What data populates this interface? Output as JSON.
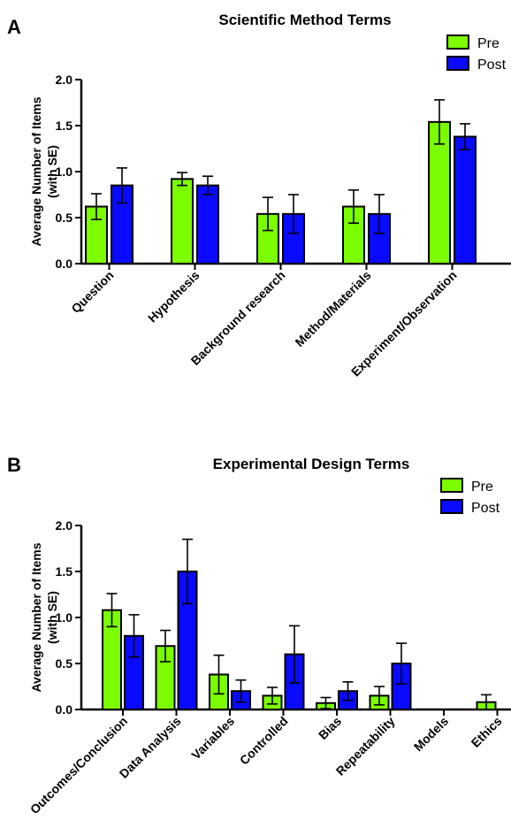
{
  "colors": {
    "pre": "#7cfc00",
    "post": "#0a0aff",
    "axis": "#000000",
    "border": "#000000"
  },
  "chart_data": [
    {
      "panel": "A",
      "type": "bar",
      "title": "Scientific Method Terms",
      "ylabel_line1": "Average Number of Items",
      "ylabel_line2": "(with SE)",
      "ylim": [
        0,
        2.0
      ],
      "yticks": [
        "0.0",
        "0.5",
        "1.0",
        "1.5",
        "2.0"
      ],
      "categories": [
        "Question",
        "Hypothesis",
        "Background research",
        "Method/Materials",
        "Experiment/Observation"
      ],
      "series": [
        {
          "name": "Pre",
          "values": [
            0.62,
            0.92,
            0.54,
            0.62,
            1.54
          ],
          "se": [
            0.14,
            0.07,
            0.18,
            0.18,
            0.24
          ]
        },
        {
          "name": "Post",
          "values": [
            0.85,
            0.85,
            0.54,
            0.54,
            1.38
          ],
          "se": [
            0.19,
            0.1,
            0.21,
            0.21,
            0.14
          ]
        }
      ],
      "legend": "top-right"
    },
    {
      "panel": "B",
      "type": "bar",
      "title": "Experimental Design Terms",
      "ylabel_line1": "Average Number of Items",
      "ylabel_line2": "(with SE)",
      "ylim": [
        0,
        2.0
      ],
      "yticks": [
        "0.0",
        "0.5",
        "1.0",
        "1.5",
        "2.0"
      ],
      "categories": [
        "Outcomes/Conclusion",
        "Data Analysis",
        "Variables",
        "Controlled",
        "Bias",
        "Repeatability",
        "Models",
        "Ethics"
      ],
      "series": [
        {
          "name": "Pre",
          "values": [
            1.08,
            0.69,
            0.38,
            0.15,
            0.07,
            0.15,
            0.0,
            0.08
          ],
          "se": [
            0.18,
            0.17,
            0.21,
            0.09,
            0.06,
            0.1,
            0.0,
            0.08
          ]
        },
        {
          "name": "Post",
          "values": [
            0.8,
            1.5,
            0.2,
            0.6,
            0.2,
            0.5,
            0.0,
            0.0
          ],
          "se": [
            0.23,
            0.35,
            0.12,
            0.31,
            0.1,
            0.22,
            0.0,
            0.0
          ]
        }
      ],
      "legend": "top-right"
    }
  ]
}
